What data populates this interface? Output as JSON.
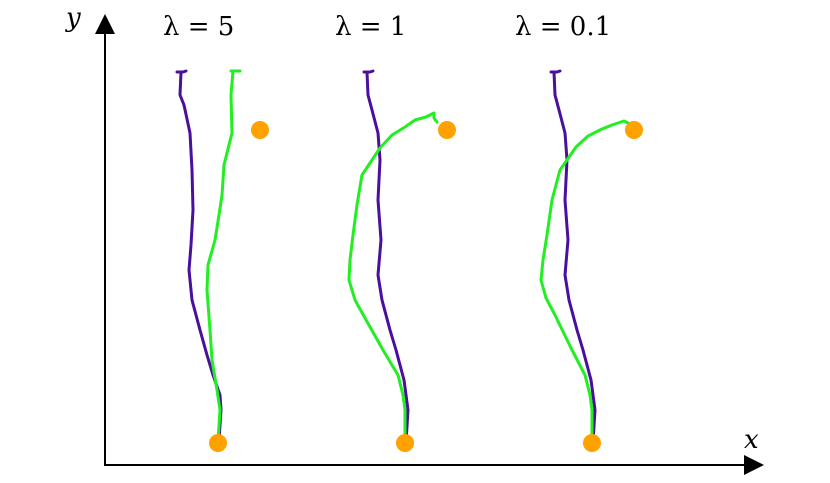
{
  "axes": {
    "x_label": "x",
    "y_label": "y"
  },
  "panels": [
    {
      "title": "λ = 5"
    },
    {
      "title": "λ = 1"
    },
    {
      "title": "λ = 0.1"
    }
  ],
  "colors": {
    "purple_trajectory": "#4b0f9e",
    "green_trajectory": "#22ee22",
    "target_dot": "#ffa200",
    "axis": "#000000"
  }
}
